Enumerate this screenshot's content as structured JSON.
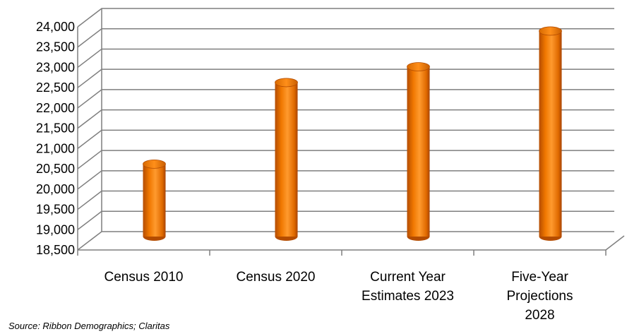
{
  "chart_data": {
    "type": "bar",
    "categories": [
      [
        "Census 2010"
      ],
      [
        "Census 2020"
      ],
      [
        "Current Year",
        "Estimates 2023"
      ],
      [
        "Five-Year",
        "Projections",
        "2028"
      ]
    ],
    "values": [
      20390,
      22400,
      22790,
      23670
    ],
    "ylim": [
      18500,
      24000
    ],
    "yticks": [
      18500,
      19000,
      19500,
      20000,
      20500,
      21000,
      21500,
      22000,
      22500,
      23000,
      23500,
      24000
    ],
    "ytick_labels": [
      "18,500",
      "19,000",
      "19,500",
      "20,000",
      "20,500",
      "21,000",
      "21,500",
      "22,000",
      "22,500",
      "23,000",
      "23,500",
      "24,000"
    ],
    "grid": true,
    "style": "3d-cylinder",
    "colors": {
      "bar": "#f07800",
      "bar_dark": "#b44c00",
      "bar_light": "#ff9a2e",
      "grid": "#7f7f7f"
    },
    "source": "Source: Ribbon Demographics; Claritas"
  }
}
